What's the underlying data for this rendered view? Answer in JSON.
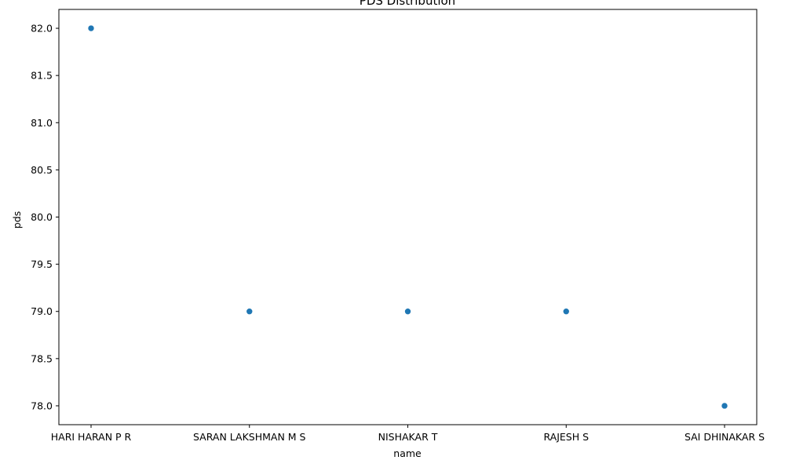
{
  "chart_data": {
    "type": "scatter",
    "title": "PDS Distribution",
    "xlabel": "name",
    "ylabel": "pds",
    "categories": [
      "HARI HARAN P R",
      "SARAN LAKSHMAN M S",
      "NISHAKAR T",
      "RAJESH S",
      "SAI DHINAKAR S"
    ],
    "series": [
      {
        "values": [
          82.0,
          79.0,
          79.0,
          79.0,
          78.0
        ]
      }
    ],
    "ylim": [
      77.8,
      82.2
    ],
    "yticks": [
      "78.0",
      "78.5",
      "79.0",
      "79.5",
      "80.0",
      "80.5",
      "81.0",
      "81.5",
      "82.0"
    ],
    "grid": false,
    "legend": "none",
    "marker_color": "#1f77b4"
  }
}
